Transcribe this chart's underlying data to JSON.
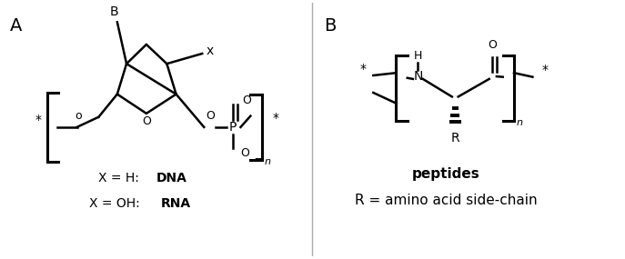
{
  "fig_width": 6.87,
  "fig_height": 2.85,
  "dpi": 100,
  "bg_color": "#ffffff",
  "label_A": "A",
  "label_B": "B",
  "panel_A_text1": "X = H: ",
  "panel_A_bold1": "DNA",
  "panel_A_text2": "X = OH: ",
  "panel_A_bold2": "RNA",
  "panel_B_bold": "peptides",
  "panel_B_text": "R = amino acid side-chain"
}
